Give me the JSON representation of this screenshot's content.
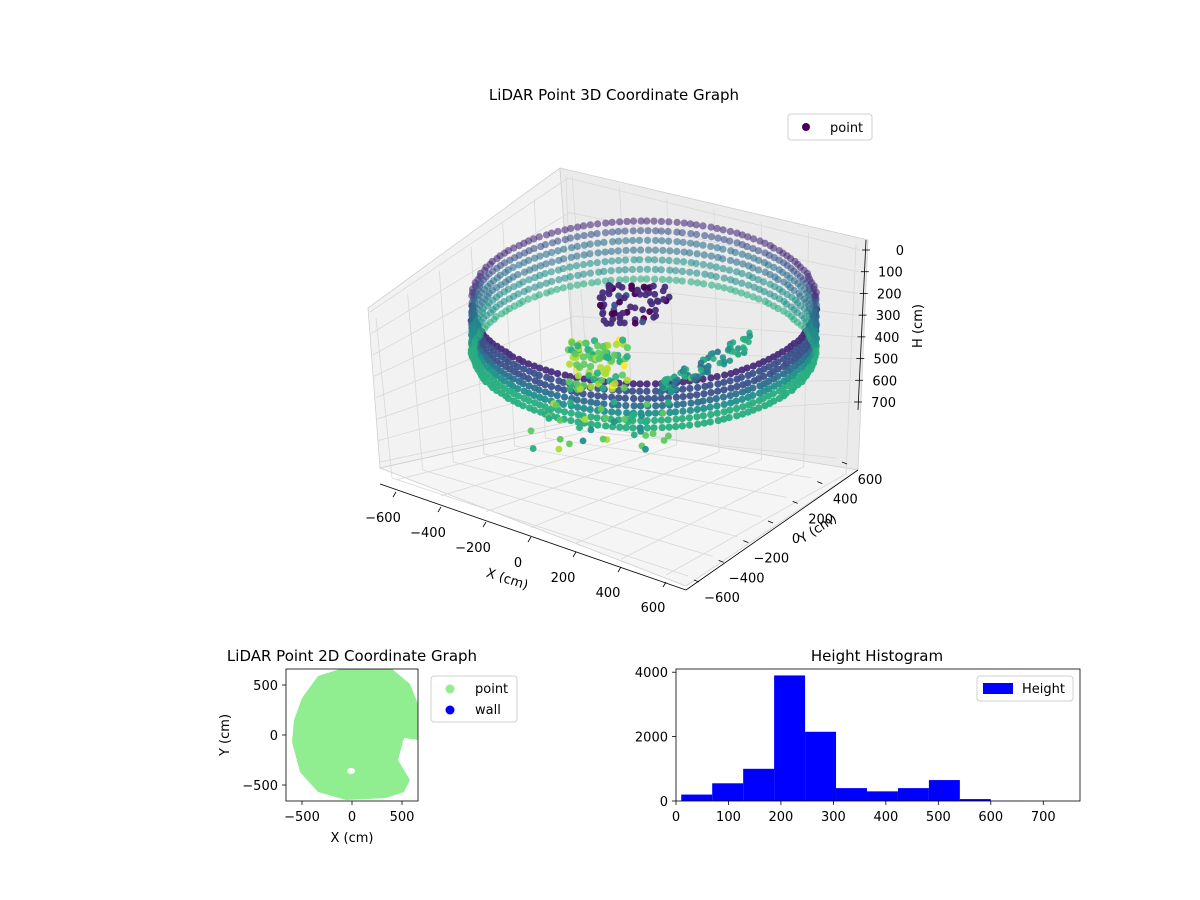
{
  "chart_data": [
    {
      "type": "scatter",
      "title": "LiDAR Point 3D Coordinate Graph",
      "xlabel": "X (cm)",
      "ylabel": "Y (cm)",
      "zlabel": "H (cm)",
      "x_ticks": [
        "−600",
        "−400",
        "−200",
        "0",
        "200",
        "400",
        "600"
      ],
      "y_ticks": [
        "−600",
        "−400",
        "−200",
        "0",
        "200",
        "400",
        "600"
      ],
      "z_ticks": [
        "0",
        "100",
        "200",
        "300",
        "400",
        "500",
        "600",
        "700"
      ],
      "xlim": [
        -650,
        650
      ],
      "ylim": [
        -650,
        650
      ],
      "zlim": [
        0,
        760
      ],
      "z_inverted": true,
      "colormap": "viridis",
      "legend": {
        "label": "point",
        "marker_color": "#440154",
        "placement": "top-right"
      },
      "grid": true
    },
    {
      "type": "scatter",
      "title": "LiDAR Point 2D Coordinate Graph",
      "xlabel": "X (cm)",
      "ylabel": "Y (cm)",
      "x_ticks": [
        "−500",
        "0",
        "500"
      ],
      "y_ticks": [
        "500",
        "0",
        "−500"
      ],
      "xlim": [
        -650,
        650
      ],
      "ylim": [
        -650,
        650
      ],
      "series": [
        {
          "name": "point",
          "color": "#90ee90"
        },
        {
          "name": "wall",
          "color": "#0000ff"
        }
      ],
      "legend_placement": "outside-right"
    },
    {
      "type": "bar",
      "title": "Height Histogram",
      "x_ticks": [
        "0",
        "100",
        "200",
        "300",
        "400",
        "500",
        "600",
        "700"
      ],
      "y_ticks": [
        "4000",
        "2000",
        "0"
      ],
      "xlim": [
        0,
        770
      ],
      "ylim": [
        0,
        4100
      ],
      "bin_edges": [
        10,
        69,
        128,
        187,
        246,
        305,
        364,
        423,
        482,
        541,
        600,
        659,
        718
      ],
      "values": [
        200,
        550,
        1000,
        3900,
        2150,
        400,
        300,
        400,
        650,
        60,
        5,
        3
      ],
      "series": [
        {
          "name": "Height",
          "color": "#0000ff"
        }
      ],
      "legend_placement": "top-right"
    }
  ]
}
